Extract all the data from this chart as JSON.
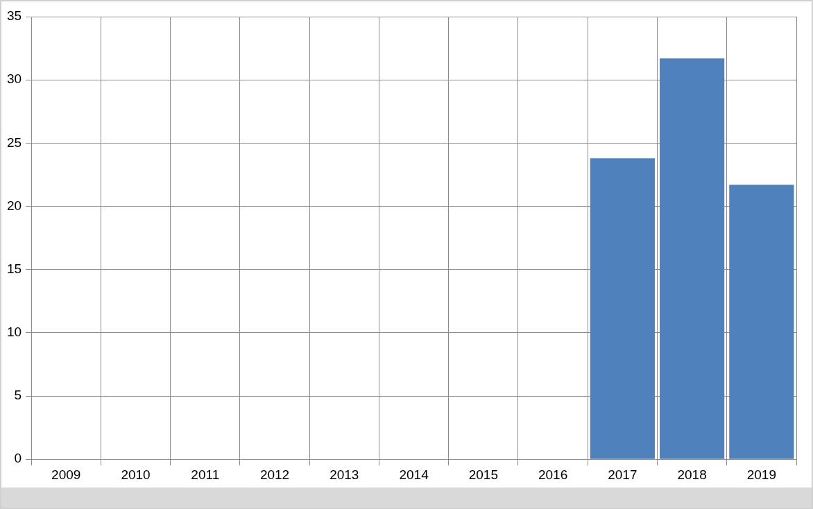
{
  "chart_data": {
    "type": "bar",
    "categories": [
      "2009",
      "2010",
      "2011",
      "2012",
      "2013",
      "2014",
      "2015",
      "2016",
      "2017",
      "2018",
      "2019"
    ],
    "values": [
      null,
      null,
      null,
      null,
      null,
      null,
      null,
      null,
      23.8,
      31.7,
      21.7
    ],
    "color": "#4f81bd",
    "ylim": [
      0,
      35
    ],
    "yticks": [
      0,
      5,
      10,
      15,
      20,
      25,
      30,
      35
    ],
    "grid": true
  }
}
